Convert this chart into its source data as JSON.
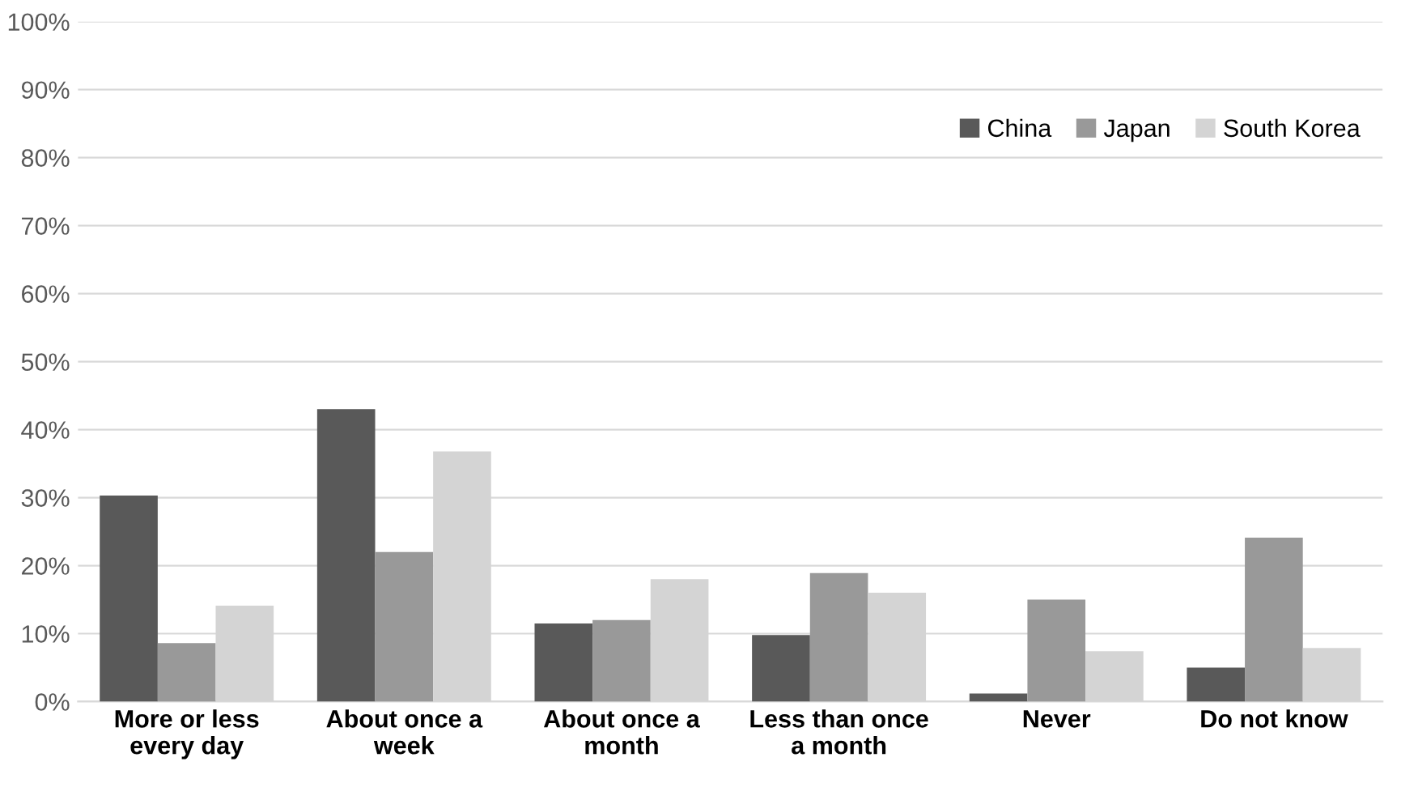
{
  "chart_data": {
    "type": "bar",
    "categories": [
      "More or less every day",
      "About once a week",
      "About once a month",
      "Less than once a month",
      "Never",
      "Do not know"
    ],
    "series": [
      {
        "name": "China",
        "color": "#595959",
        "values": [
          30.3,
          43,
          11.5,
          9.8,
          1.2,
          5
        ]
      },
      {
        "name": "Japan",
        "color": "#999999",
        "values": [
          8.6,
          22,
          12,
          18.9,
          15,
          24.1
        ]
      },
      {
        "name": "South Korea",
        "color": "#d4d4d4",
        "values": [
          14.1,
          36.8,
          18,
          16,
          7.4,
          7.9
        ]
      }
    ],
    "ylim": [
      0,
      100
    ],
    "yticks": [
      {
        "value": 0,
        "label": "0%"
      },
      {
        "value": 10,
        "label": "10%"
      },
      {
        "value": 20,
        "label": "20%"
      },
      {
        "value": 30,
        "label": "30%"
      },
      {
        "value": 40,
        "label": "40%"
      },
      {
        "value": 50,
        "label": "50%"
      },
      {
        "value": 60,
        "label": "60%"
      },
      {
        "value": 70,
        "label": "70%"
      },
      {
        "value": 80,
        "label": "80%"
      },
      {
        "value": 90,
        "label": "90%"
      },
      {
        "value": 100,
        "label": "100%"
      }
    ],
    "grid": "y",
    "legend": "top right"
  }
}
